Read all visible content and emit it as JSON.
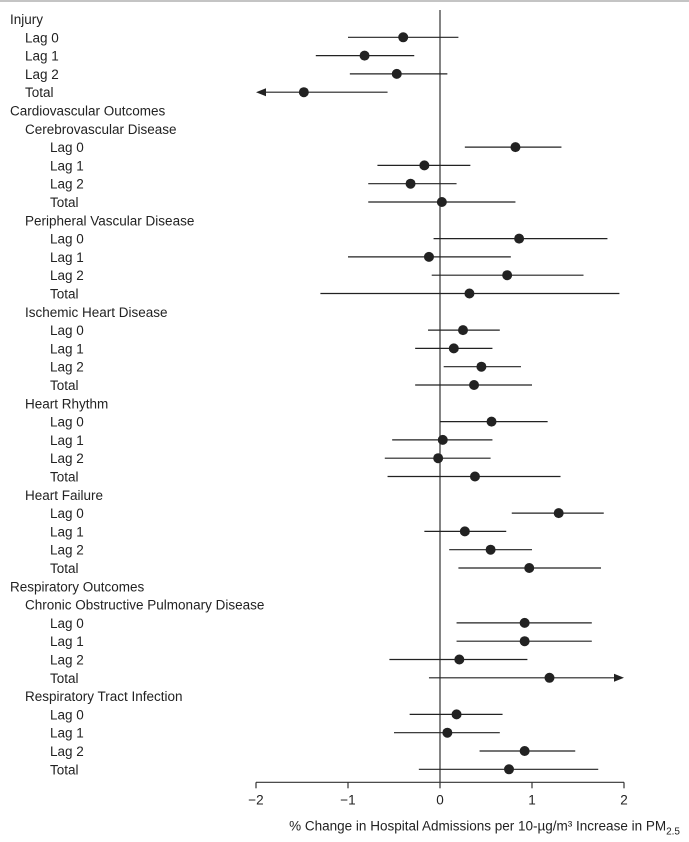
{
  "chart_data": {
    "type": "forest",
    "xlabel": "% Change in Hospital Admissions per 10-µg/m³ Increase in PM",
    "xlabel_sub": "2.5",
    "xlim": [
      -2,
      2
    ],
    "xticks": [
      -2,
      -1,
      0,
      1,
      2
    ],
    "xtick_labels": [
      "−2",
      "−1",
      "0",
      "1",
      "2"
    ],
    "reference_line": 0,
    "rows": [
      {
        "label": "Injury",
        "level": 0
      },
      {
        "label": "Lag 0",
        "level": 1,
        "est": -0.4,
        "lo": -1.0,
        "hi": 0.2
      },
      {
        "label": "Lag 1",
        "level": 1,
        "est": -0.82,
        "lo": -1.35,
        "hi": -0.28
      },
      {
        "label": "Lag 2",
        "level": 1,
        "est": -0.47,
        "lo": -0.98,
        "hi": 0.08
      },
      {
        "label": "Total",
        "level": 1,
        "est": -1.48,
        "lo": -2.0,
        "hi": -0.57,
        "arrow": "left"
      },
      {
        "label": "Cardiovascular Outcomes",
        "level": 0
      },
      {
        "label": "Cerebrovascular Disease",
        "level": 1
      },
      {
        "label": "Lag 0",
        "level": 2,
        "est": 0.82,
        "lo": 0.27,
        "hi": 1.32
      },
      {
        "label": "Lag 1",
        "level": 2,
        "est": -0.17,
        "lo": -0.68,
        "hi": 0.33
      },
      {
        "label": "Lag 2",
        "level": 2,
        "est": -0.32,
        "lo": -0.78,
        "hi": 0.18
      },
      {
        "label": "Total",
        "level": 2,
        "est": 0.02,
        "lo": -0.78,
        "hi": 0.82
      },
      {
        "label": "Peripheral Vascular Disease",
        "level": 1
      },
      {
        "label": "Lag 0",
        "level": 2,
        "est": 0.86,
        "lo": -0.07,
        "hi": 1.82
      },
      {
        "label": "Lag 1",
        "level": 2,
        "est": -0.12,
        "lo": -1.0,
        "hi": 0.77
      },
      {
        "label": "Lag 2",
        "level": 2,
        "est": 0.73,
        "lo": -0.09,
        "hi": 1.56
      },
      {
        "label": "Total",
        "level": 2,
        "est": 0.32,
        "lo": -1.3,
        "hi": 1.95
      },
      {
        "label": "Ischemic Heart Disease",
        "level": 1
      },
      {
        "label": "Lag 0",
        "level": 2,
        "est": 0.25,
        "lo": -0.13,
        "hi": 0.65
      },
      {
        "label": "Lag 1",
        "level": 2,
        "est": 0.15,
        "lo": -0.27,
        "hi": 0.57
      },
      {
        "label": "Lag 2",
        "level": 2,
        "est": 0.45,
        "lo": 0.04,
        "hi": 0.88
      },
      {
        "label": "Total",
        "level": 2,
        "est": 0.37,
        "lo": -0.27,
        "hi": 1.0
      },
      {
        "label": "Heart Rhythm",
        "level": 1
      },
      {
        "label": "Lag 0",
        "level": 2,
        "est": 0.56,
        "lo": 0.0,
        "hi": 1.17
      },
      {
        "label": "Lag 1",
        "level": 2,
        "est": 0.03,
        "lo": -0.52,
        "hi": 0.57
      },
      {
        "label": "Lag 2",
        "level": 2,
        "est": -0.02,
        "lo": -0.6,
        "hi": 0.55
      },
      {
        "label": "Total",
        "level": 2,
        "est": 0.38,
        "lo": -0.57,
        "hi": 1.31
      },
      {
        "label": "Heart Failure",
        "level": 1
      },
      {
        "label": "Lag 0",
        "level": 2,
        "est": 1.29,
        "lo": 0.78,
        "hi": 1.78
      },
      {
        "label": "Lag 1",
        "level": 2,
        "est": 0.27,
        "lo": -0.17,
        "hi": 0.72
      },
      {
        "label": "Lag 2",
        "level": 2,
        "est": 0.55,
        "lo": 0.1,
        "hi": 1.0
      },
      {
        "label": "Total",
        "level": 2,
        "est": 0.97,
        "lo": 0.2,
        "hi": 1.75
      },
      {
        "label": "Respiratory Outcomes",
        "level": 0
      },
      {
        "label": "Chronic Obstructive Pulmonary Disease",
        "level": 1
      },
      {
        "label": "Lag 0",
        "level": 2,
        "est": 0.92,
        "lo": 0.18,
        "hi": 1.65
      },
      {
        "label": "Lag 1",
        "level": 2,
        "est": 0.92,
        "lo": 0.18,
        "hi": 1.65
      },
      {
        "label": "Lag 2",
        "level": 2,
        "est": 0.21,
        "lo": -0.55,
        "hi": 0.95
      },
      {
        "label": "Total",
        "level": 2,
        "est": 1.19,
        "lo": -0.12,
        "hi": 2.0,
        "arrow": "right"
      },
      {
        "label": "Respiratory Tract Infection",
        "level": 1
      },
      {
        "label": "Lag 0",
        "level": 2,
        "est": 0.18,
        "lo": -0.33,
        "hi": 0.68
      },
      {
        "label": "Lag 1",
        "level": 2,
        "est": 0.08,
        "lo": -0.5,
        "hi": 0.65
      },
      {
        "label": "Lag 2",
        "level": 2,
        "est": 0.92,
        "lo": 0.43,
        "hi": 1.47
      },
      {
        "label": "Total",
        "level": 2,
        "est": 0.75,
        "lo": -0.23,
        "hi": 1.72
      }
    ]
  },
  "colors": {
    "marker": "#222222",
    "line": "#222222",
    "text": "#222222"
  }
}
